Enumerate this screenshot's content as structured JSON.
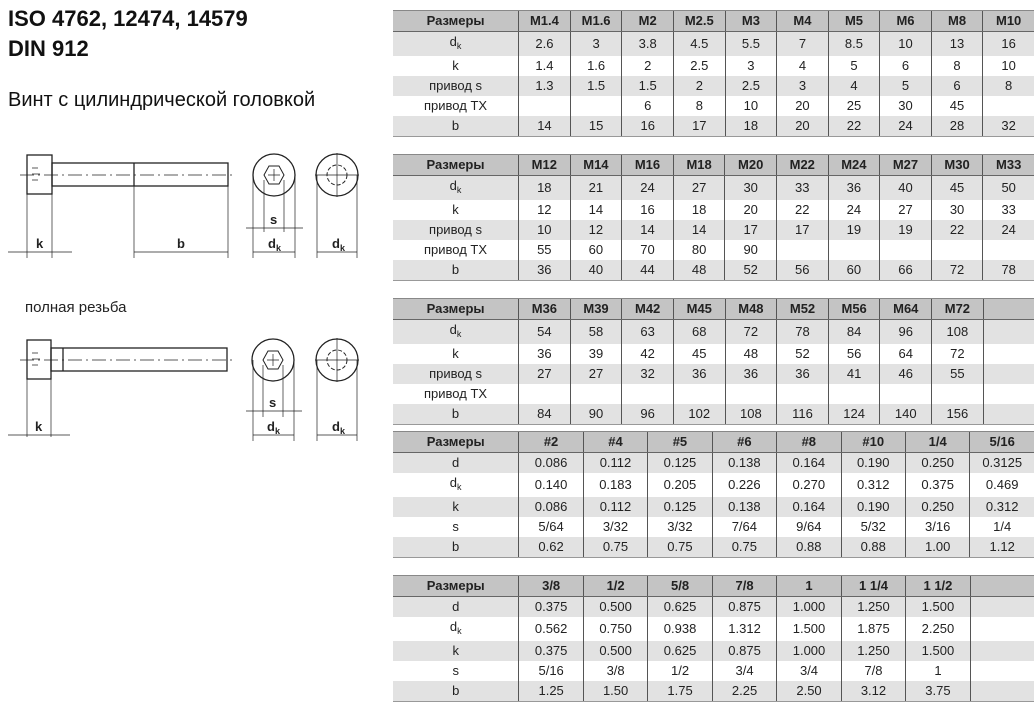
{
  "header": {
    "title_line1": "ISO 4762, 12474, 14579",
    "title_line2": "DIN 912",
    "subtitle": "Винт с цилиндрической головкой",
    "full_thread_caption": "полная резьба"
  },
  "drawing_labels": {
    "k": "k",
    "b": "b",
    "s": "s",
    "d": "d",
    "dk_sub": "k"
  },
  "colors": {
    "header_bg": "#c4c4c4",
    "stripe_bg": "#e2e2e2"
  },
  "tables": [
    {
      "header": [
        "Размеры",
        "M1.4",
        "M1.6",
        "M2",
        "M2.5",
        "M3",
        "M4",
        "M5",
        "M6",
        "M8",
        "M10"
      ],
      "rows": [
        {
          "label": "d",
          "sub": "k",
          "values": [
            "2.6",
            "3",
            "3.8",
            "4.5",
            "5.5",
            "7",
            "8.5",
            "10",
            "13",
            "16"
          ]
        },
        {
          "label": "k",
          "values": [
            "1.4",
            "1.6",
            "2",
            "2.5",
            "3",
            "4",
            "5",
            "6",
            "8",
            "10"
          ]
        },
        {
          "label": "привод s",
          "values": [
            "1.3",
            "1.5",
            "1.5",
            "2",
            "2.5",
            "3",
            "4",
            "5",
            "6",
            "8"
          ]
        },
        {
          "label": "привод TX",
          "values": [
            "",
            "",
            "6",
            "8",
            "10",
            "20",
            "25",
            "30",
            "45",
            ""
          ]
        },
        {
          "label": "b",
          "values": [
            "14",
            "15",
            "16",
            "17",
            "18",
            "20",
            "22",
            "24",
            "28",
            "32"
          ]
        }
      ]
    },
    {
      "header": [
        "Размеры",
        "M12",
        "M14",
        "M16",
        "M18",
        "M20",
        "M22",
        "M24",
        "M27",
        "M30",
        "M33"
      ],
      "rows": [
        {
          "label": "d",
          "sub": "k",
          "values": [
            "18",
            "21",
            "24",
            "27",
            "30",
            "33",
            "36",
            "40",
            "45",
            "50"
          ]
        },
        {
          "label": "k",
          "values": [
            "12",
            "14",
            "16",
            "18",
            "20",
            "22",
            "24",
            "27",
            "30",
            "33"
          ]
        },
        {
          "label": "привод s",
          "values": [
            "10",
            "12",
            "14",
            "14",
            "17",
            "17",
            "19",
            "19",
            "22",
            "24"
          ]
        },
        {
          "label": "привод TX",
          "values": [
            "55",
            "60",
            "70",
            "80",
            "90",
            "",
            "",
            "",
            "",
            ""
          ]
        },
        {
          "label": "b",
          "values": [
            "36",
            "40",
            "44",
            "48",
            "52",
            "56",
            "60",
            "66",
            "72",
            "78"
          ]
        }
      ]
    },
    {
      "header": [
        "Размеры",
        "M36",
        "M39",
        "M42",
        "M45",
        "M48",
        "M52",
        "M56",
        "M64",
        "M72",
        ""
      ],
      "rows": [
        {
          "label": "d",
          "sub": "k",
          "values": [
            "54",
            "58",
            "63",
            "68",
            "72",
            "78",
            "84",
            "96",
            "108",
            ""
          ]
        },
        {
          "label": "k",
          "values": [
            "36",
            "39",
            "42",
            "45",
            "48",
            "52",
            "56",
            "64",
            "72",
            ""
          ]
        },
        {
          "label": "привод s",
          "values": [
            "27",
            "27",
            "32",
            "36",
            "36",
            "36",
            "41",
            "46",
            "55",
            ""
          ]
        },
        {
          "label": "привод TX",
          "values": [
            "",
            "",
            "",
            "",
            "",
            "",
            "",
            "",
            "",
            ""
          ]
        },
        {
          "label": "b",
          "values": [
            "84",
            "90",
            "96",
            "102",
            "108",
            "116",
            "124",
            "140",
            "156",
            ""
          ]
        }
      ]
    },
    {
      "header": [
        "Размеры",
        "#2",
        "#4",
        "#5",
        "#6",
        "#8",
        "#10",
        "1/4",
        "5/16"
      ],
      "rows": [
        {
          "label": "d",
          "values": [
            "0.086",
            "0.112",
            "0.125",
            "0.138",
            "0.164",
            "0.190",
            "0.250",
            "0.3125"
          ]
        },
        {
          "label": "d",
          "sub": "k",
          "values": [
            "0.140",
            "0.183",
            "0.205",
            "0.226",
            "0.270",
            "0.312",
            "0.375",
            "0.469"
          ]
        },
        {
          "label": "k",
          "values": [
            "0.086",
            "0.112",
            "0.125",
            "0.138",
            "0.164",
            "0.190",
            "0.250",
            "0.312"
          ]
        },
        {
          "label": "s",
          "values": [
            "5/64",
            "3/32",
            "3/32",
            "7/64",
            "9/64",
            "5/32",
            "3/16",
            "1/4"
          ]
        },
        {
          "label": "b",
          "values": [
            "0.62",
            "0.75",
            "0.75",
            "0.75",
            "0.88",
            "0.88",
            "1.00",
            "1.12"
          ]
        }
      ]
    },
    {
      "header": [
        "Размеры",
        "3/8",
        "1/2",
        "5/8",
        "7/8",
        "1",
        "1 1/4",
        "1 1/2",
        ""
      ],
      "rows": [
        {
          "label": "d",
          "values": [
            "0.375",
            "0.500",
            "0.625",
            "0.875",
            "1.000",
            "1.250",
            "1.500",
            ""
          ]
        },
        {
          "label": "d",
          "sub": "k",
          "values": [
            "0.562",
            "0.750",
            "0.938",
            "1.312",
            "1.500",
            "1.875",
            "2.250",
            ""
          ]
        },
        {
          "label": "k",
          "values": [
            "0.375",
            "0.500",
            "0.625",
            "0.875",
            "1.000",
            "1.250",
            "1.500",
            ""
          ]
        },
        {
          "label": "s",
          "values": [
            "5/16",
            "3/8",
            "1/2",
            "3/4",
            "3/4",
            "7/8",
            "1",
            ""
          ]
        },
        {
          "label": "b",
          "values": [
            "1.25",
            "1.50",
            "1.75",
            "2.25",
            "2.50",
            "3.12",
            "3.75",
            ""
          ]
        }
      ]
    }
  ]
}
